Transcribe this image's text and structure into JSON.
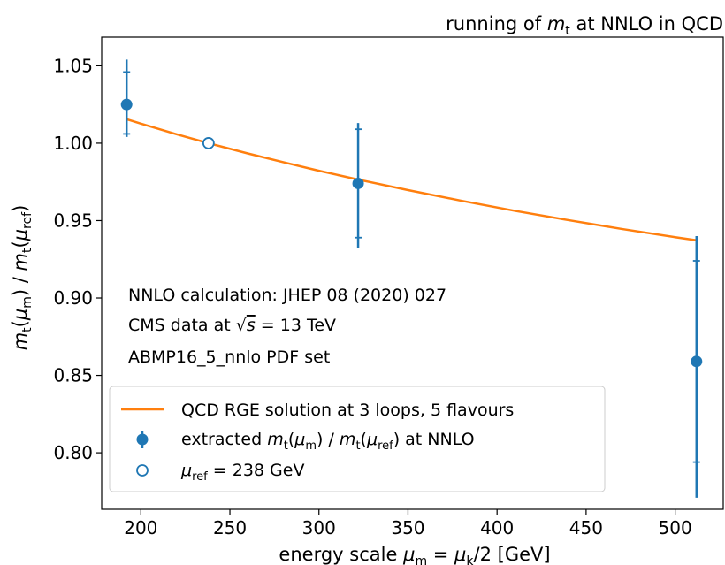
{
  "chart_data": {
    "type": "scatter",
    "title": "running of m_t at NNLO in QCD",
    "xlabel": "energy scale μ_m = μ_k/2 [GeV]",
    "ylabel": "m_t(μ_m) / m_t(μ_ref)",
    "xlim": [
      178,
      527
    ],
    "ylim": [
      0.7635,
      1.0685
    ],
    "xticks": [
      200,
      250,
      300,
      350,
      400,
      450,
      500
    ],
    "xtick_labels": [
      "200",
      "250",
      "300",
      "350",
      "400",
      "450",
      "500"
    ],
    "yticks": [
      0.8,
      0.85,
      0.9,
      0.95,
      1.0,
      1.05
    ],
    "ytick_labels": [
      "0.80",
      "0.85",
      "0.90",
      "0.95",
      "1.00",
      "1.05"
    ],
    "grid": false,
    "legend_position": "lower-left",
    "annotations": [
      "NNLO calculation: JHEP 08 (2020) 027",
      "CMS data at √s = 13 TeV",
      "ABMP16_5_nnlo PDF set"
    ],
    "series": [
      {
        "name": "QCD RGE solution at 3 loops, 5 flavours",
        "kind": "line",
        "color": "#ff7f0e",
        "x": [
          192,
          200,
          220,
          238,
          260,
          280,
          300,
          322,
          350,
          380,
          410,
          440,
          470,
          500,
          512
        ],
        "y": [
          1.0155,
          1.0126,
          1.0058,
          1.0,
          0.9934,
          0.9877,
          0.9822,
          0.9765,
          0.9697,
          0.9628,
          0.9563,
          0.9503,
          0.9446,
          0.9393,
          0.9373
        ]
      },
      {
        "name": "extracted m_t(μ_m) / m_t(μ_ref) at NNLO",
        "kind": "points_with_errors",
        "color": "#1f77b4",
        "points": [
          {
            "x": 192,
            "y": 1.025,
            "err_total": [
              1.004,
              1.054
            ],
            "err_inner": [
              1.006,
              1.046
            ]
          },
          {
            "x": 322,
            "y": 0.974,
            "err_total": [
              0.932,
              1.013
            ],
            "err_inner": [
              0.939,
              1.009
            ]
          },
          {
            "x": 512,
            "y": 0.859,
            "err_total": [
              0.771,
              0.94
            ],
            "err_inner": [
              0.794,
              0.924
            ]
          }
        ]
      },
      {
        "name": "μ_ref = 238 GeV",
        "kind": "reference_point",
        "color": "#1f77b4",
        "x": 238,
        "y": 1.0
      }
    ],
    "legend": [
      {
        "label": "QCD RGE solution at 3 loops, 5 flavours",
        "marker": "line",
        "color": "#ff7f0e"
      },
      {
        "label": "extracted m_t(μ_m) / m_t(μ_ref) at NNLO",
        "marker": "filled-circle-errorbar",
        "color": "#1f77b4"
      },
      {
        "label": "μ_ref = 238 GeV",
        "marker": "open-circle",
        "color": "#1f77b4"
      }
    ]
  }
}
